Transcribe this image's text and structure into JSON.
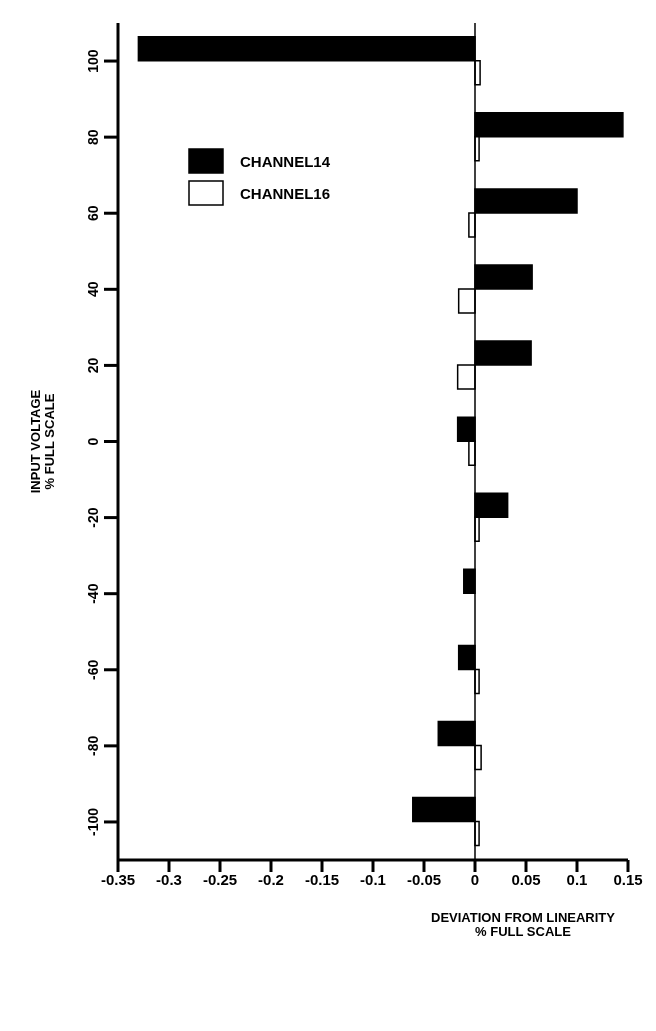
{
  "chart_data": {
    "type": "bar",
    "orientation": "horizontal",
    "xlabel": "DEVIATION FROM LINEARITY\n% FULL SCALE",
    "ylabel": "INPUT VOLTAGE\n% FULL SCALE",
    "categories": [
      "100",
      "80",
      "60",
      "40",
      "20",
      "0",
      "-20",
      "-40",
      "-60",
      "-80",
      "-100"
    ],
    "series": [
      {
        "name": "CHANNEL14",
        "color": "#000000",
        "values": [
          -0.33,
          0.145,
          0.1,
          0.056,
          0.055,
          -0.017,
          0.032,
          -0.011,
          -0.016,
          -0.036,
          -0.061
        ]
      },
      {
        "name": "CHANNEL16",
        "color": "#ffffff",
        "values": [
          0.005,
          0.004,
          -0.006,
          -0.016,
          -0.017,
          -0.006,
          0.004,
          0,
          0.004,
          0.006,
          0.004
        ]
      }
    ],
    "xlim": [
      -0.35,
      0.15
    ],
    "xticks": [
      -0.35,
      -0.3,
      -0.25,
      -0.2,
      -0.15,
      -0.1,
      -0.05,
      0,
      0.05,
      0.1,
      0.15
    ],
    "ref_lines": [
      {
        "axis": "x",
        "value": 0,
        "color": "#000000"
      }
    ],
    "legend": "top left",
    "grid": false
  }
}
